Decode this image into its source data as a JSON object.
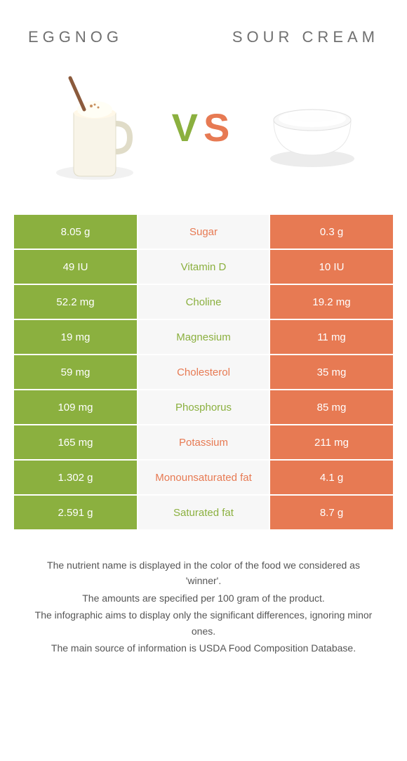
{
  "titles": {
    "left": "Eggnog",
    "right": "Sour Cream"
  },
  "vs": {
    "v": "V",
    "s": "S"
  },
  "colors": {
    "green": "#8bb03f",
    "orange": "#e77a53",
    "gray_bg": "#f7f7f7",
    "text_gray": "#707070",
    "footer_gray": "#555555"
  },
  "rows": [
    {
      "left": "8.05 g",
      "label": "Sugar",
      "right": "0.3 g",
      "winner": "orange"
    },
    {
      "left": "49 IU",
      "label": "Vitamin D",
      "right": "10 IU",
      "winner": "green"
    },
    {
      "left": "52.2 mg",
      "label": "Choline",
      "right": "19.2 mg",
      "winner": "green"
    },
    {
      "left": "19 mg",
      "label": "Magnesium",
      "right": "11 mg",
      "winner": "green"
    },
    {
      "left": "59 mg",
      "label": "Cholesterol",
      "right": "35 mg",
      "winner": "orange"
    },
    {
      "left": "109 mg",
      "label": "Phosphorus",
      "right": "85 mg",
      "winner": "green"
    },
    {
      "left": "165 mg",
      "label": "Potassium",
      "right": "211 mg",
      "winner": "orange"
    },
    {
      "left": "1.302 g",
      "label": "Monounsaturated fat",
      "right": "4.1 g",
      "winner": "orange"
    },
    {
      "left": "2.591 g",
      "label": "Saturated fat",
      "right": "8.7 g",
      "winner": "green"
    }
  ],
  "footer": {
    "line1": "The nutrient name is displayed in the color of the food we considered as 'winner'.",
    "line2": "The amounts are specified per 100 gram of the product.",
    "line3": "The infographic aims to display only the significant differences, ignoring minor ones.",
    "line4": "The main source of information is USDA Food Composition Database."
  }
}
